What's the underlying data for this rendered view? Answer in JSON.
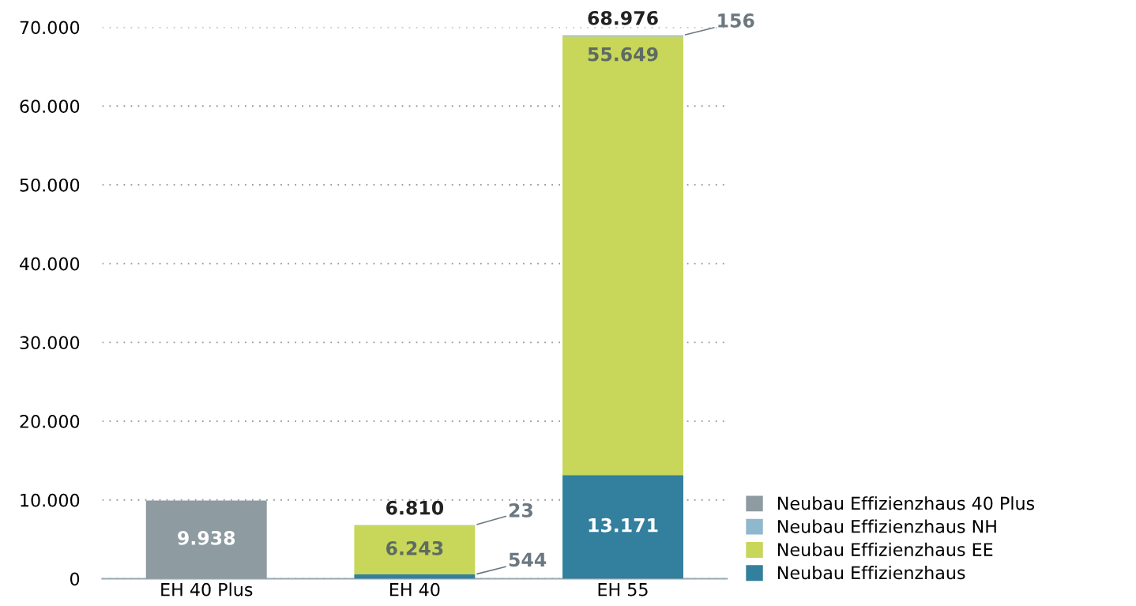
{
  "chart_data": {
    "type": "bar",
    "stacked": true,
    "categories": [
      "EH 40 Plus",
      "EH 40",
      "EH 55"
    ],
    "series": [
      {
        "name": "Neubau Effizienzhaus",
        "color": "#337f9e",
        "values": [
          null,
          544,
          13171
        ],
        "value_labels": [
          null,
          "544",
          "13.171"
        ]
      },
      {
        "name": "Neubau Effizienzhaus EE",
        "color": "#c8d65a",
        "values": [
          null,
          6243,
          55649
        ],
        "value_labels": [
          null,
          "6.243",
          "55.649"
        ]
      },
      {
        "name": "Neubau Effizienzhaus NH",
        "color": "#8fb8cc",
        "values": [
          null,
          23,
          156
        ],
        "value_labels": [
          null,
          "23",
          "156"
        ]
      },
      {
        "name": "Neubau Effizienzhaus 40 Plus",
        "color": "#8e9ba1",
        "values": [
          9938,
          null,
          null
        ],
        "value_labels": [
          "9.938",
          null,
          null
        ]
      }
    ],
    "totals": [
      null,
      "6.810",
      "68.976"
    ],
    "ylim": [
      0,
      70000
    ],
    "yticks": [
      0,
      {
        "value": 10000,
        "label": "10.000"
      },
      {
        "value": 20000,
        "label": "20.000"
      },
      {
        "value": 30000,
        "label": "30.000"
      },
      {
        "value": 40000,
        "label": "40.000"
      },
      {
        "value": 50000,
        "label": "50.000"
      },
      {
        "value": 60000,
        "label": "60.000"
      },
      {
        "value": 70000,
        "label": "70.000"
      }
    ],
    "grid": "y",
    "legend": "bottom right"
  }
}
